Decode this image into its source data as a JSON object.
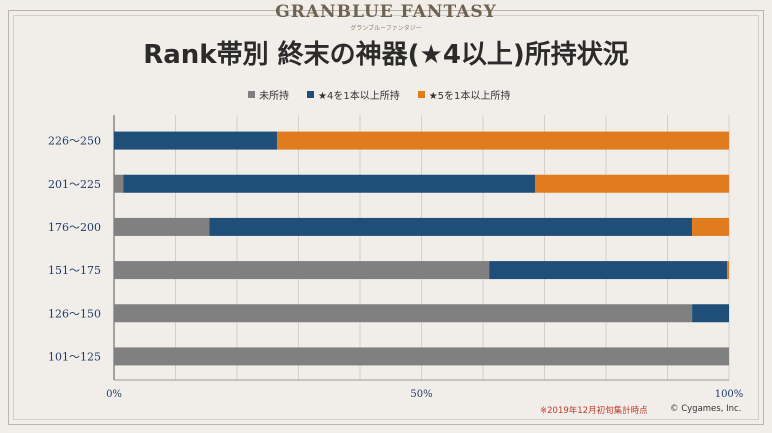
{
  "header": {
    "logo": "GRANBLUE FANTASY",
    "logo_sub": "グランブルーファンタジー",
    "title": "Rank帯別 終末の神器(★4以上)所持状況"
  },
  "colors": {
    "none": "#808080",
    "star4": "#1f4e79",
    "star5": "#e07b1e"
  },
  "chart_data": {
    "type": "bar",
    "orientation": "horizontal",
    "stacked": true,
    "categories": [
      "226～250",
      "201～225",
      "176～200",
      "151～175",
      "126～150",
      "101～125"
    ],
    "series": [
      {
        "name": "未所持",
        "color": "#808080",
        "values": [
          0,
          1.5,
          15.5,
          61,
          94,
          100
        ]
      },
      {
        "name": "★4を1本以上所持",
        "color": "#1f4e79",
        "values": [
          26.5,
          67,
          78.5,
          38.7,
          6,
          0
        ]
      },
      {
        "name": "★5を1本以上所持",
        "color": "#e07b1e",
        "values": [
          73.5,
          31.5,
          6,
          0.3,
          0,
          0
        ]
      }
    ],
    "xlim": [
      0,
      100
    ],
    "x_ticks": [
      "0%",
      "50%",
      "100%"
    ],
    "grid": true,
    "legend_position": "top"
  },
  "footer": {
    "note": "※2019年12月初旬集計時点",
    "copyright": "© Cygames, Inc."
  }
}
